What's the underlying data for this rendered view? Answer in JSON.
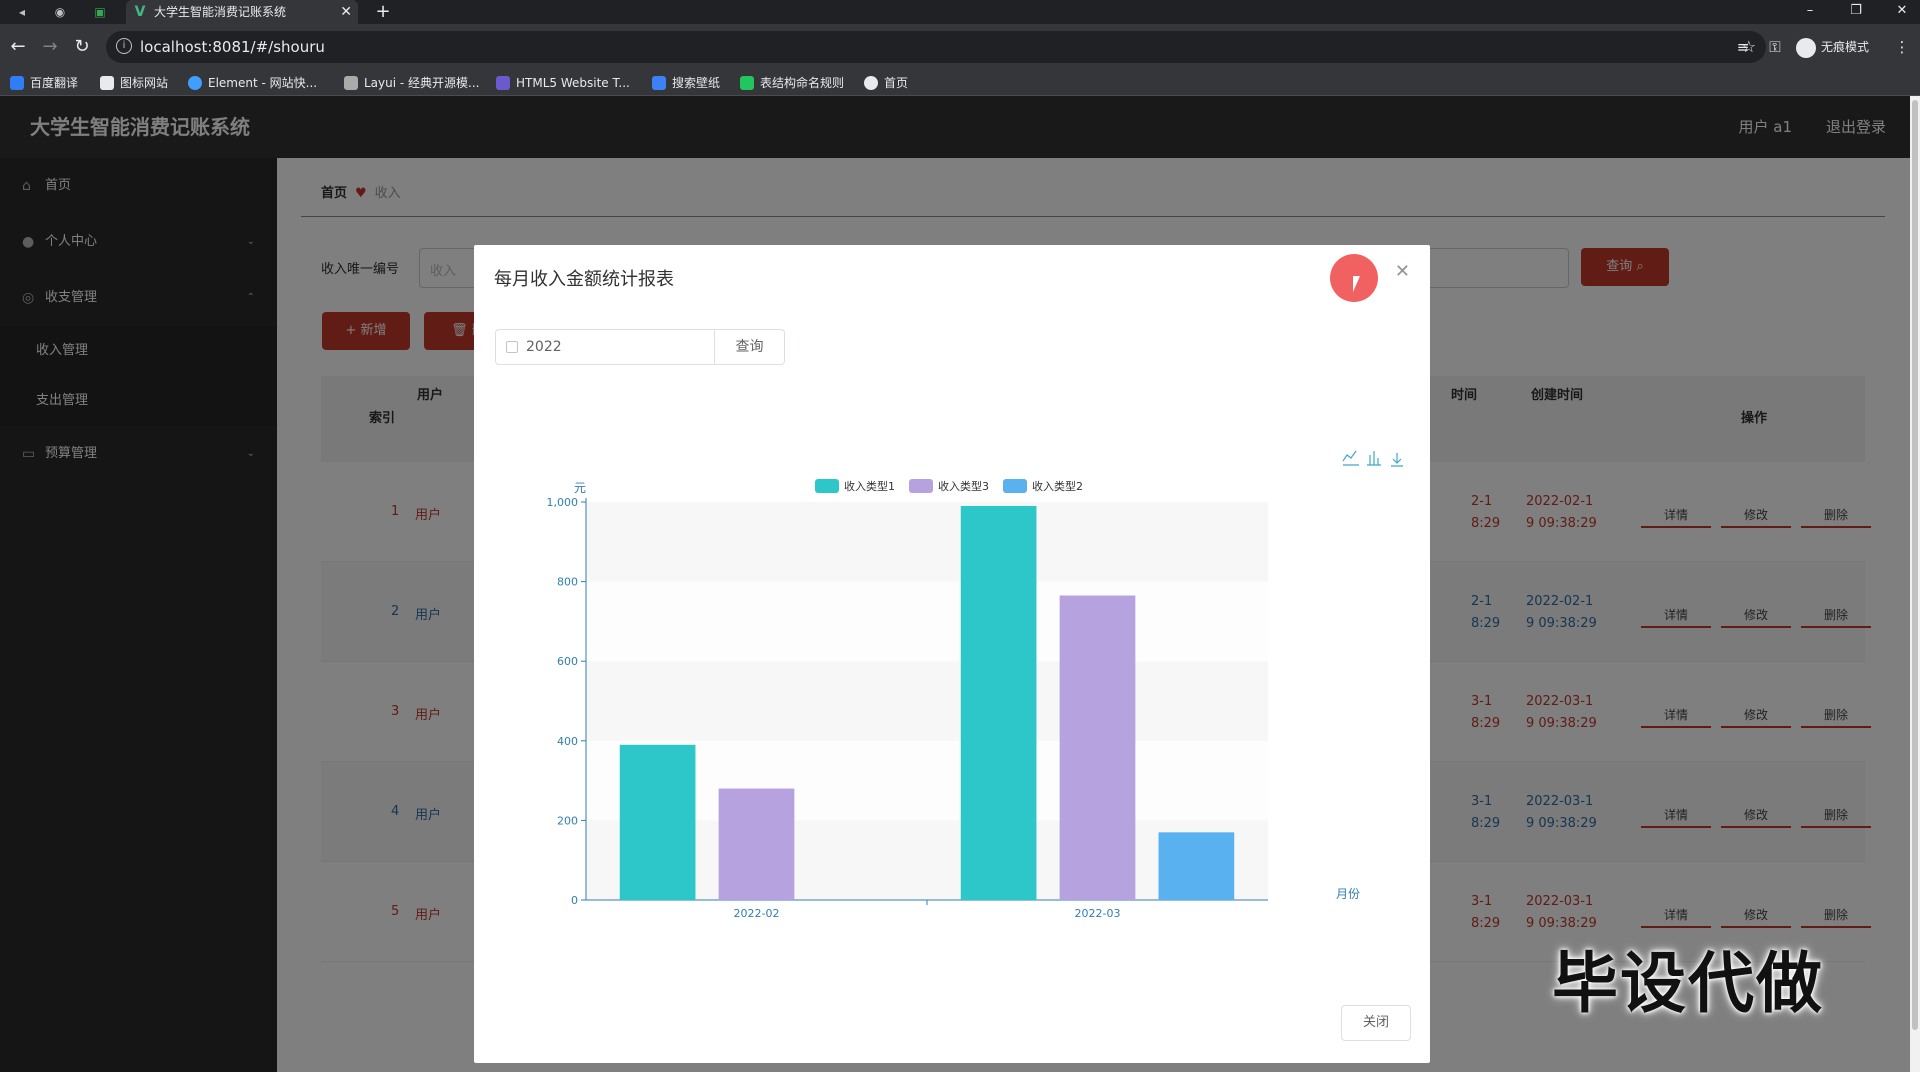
{
  "browser": {
    "tab_title": "大学生智能消费记账系统",
    "tab_favicon": "V",
    "url": "localhost:8081/#/shouru",
    "incognito_label": "无痕模式",
    "bookmarks": [
      "百度翻译",
      "图标网站",
      "Element - 网站快...",
      "Layui - 经典开源模...",
      "HTML5 Website T...",
      "搜索壁纸",
      "表结构命名规则",
      "首页"
    ]
  },
  "app": {
    "title": "大学生智能消费记账系统",
    "user": "用户 a1",
    "logout": "退出登录"
  },
  "sidebar": {
    "items": [
      {
        "label": "首页",
        "icon": "home-icon"
      },
      {
        "label": "个人中心",
        "icon": "user-icon"
      },
      {
        "label": "收支管理",
        "icon": "wallet-icon"
      },
      {
        "label": "预算管理",
        "icon": "chat-icon"
      }
    ],
    "sub_items": [
      "收入管理",
      "支出管理"
    ]
  },
  "breadcrumb": {
    "home": "首页",
    "current": "收入"
  },
  "search": {
    "label": "收入唯一编号",
    "placeholder": "收入",
    "button": "查询"
  },
  "actions": {
    "add": "+ 新增",
    "delete": "删"
  },
  "table": {
    "headers": {
      "index": "索引",
      "user": "用户",
      "time": "时间",
      "created": "创建时间",
      "ops": "操作"
    },
    "rows": [
      {
        "index": "1",
        "user": "用户",
        "time_a": "2-1",
        "time_b": "8:29",
        "created_a": "2022-02-1",
        "created_b": "9 09:38:29"
      },
      {
        "index": "2",
        "user": "用户",
        "time_a": "2-1",
        "time_b": "8:29",
        "created_a": "2022-02-1",
        "created_b": "9 09:38:29"
      },
      {
        "index": "3",
        "user": "用户",
        "time_a": "3-1",
        "time_b": "8:29",
        "created_a": "2022-03-1",
        "created_b": "9 09:38:29"
      },
      {
        "index": "4",
        "user": "用户",
        "time_a": "3-1",
        "time_b": "8:29",
        "created_a": "2022-03-1",
        "created_b": "9 09:38:29"
      },
      {
        "index": "5",
        "user": "用户",
        "time_a": "3-1",
        "time_b": "8:29",
        "created_a": "2022-03-1",
        "created_b": "9 09:38:29"
      }
    ],
    "ops": [
      "详情",
      "修改",
      "删除"
    ]
  },
  "dialog": {
    "title": "每月收入金额统计报表",
    "year_value": "2022",
    "query_button": "查询",
    "close_button": "关闭"
  },
  "chart_data": {
    "type": "bar",
    "categories": [
      "2022-02",
      "2022-03"
    ],
    "series": [
      {
        "name": "收入类型1",
        "values": [
          390,
          990
        ],
        "color": "#2ec7c9"
      },
      {
        "name": "收入类型3",
        "values": [
          280,
          765
        ],
        "color": "#b6a2de"
      },
      {
        "name": "收入类型2",
        "values": [
          0,
          170
        ],
        "color": "#5ab1ef"
      }
    ],
    "xlabel": "月份",
    "ylabel": "元",
    "ylim": [
      0,
      1000
    ],
    "yticks": [
      "0",
      "200",
      "400",
      "600",
      "800",
      "1,000"
    ],
    "legend_position": "top-center",
    "grid": true
  },
  "watermark": "毕设代做"
}
